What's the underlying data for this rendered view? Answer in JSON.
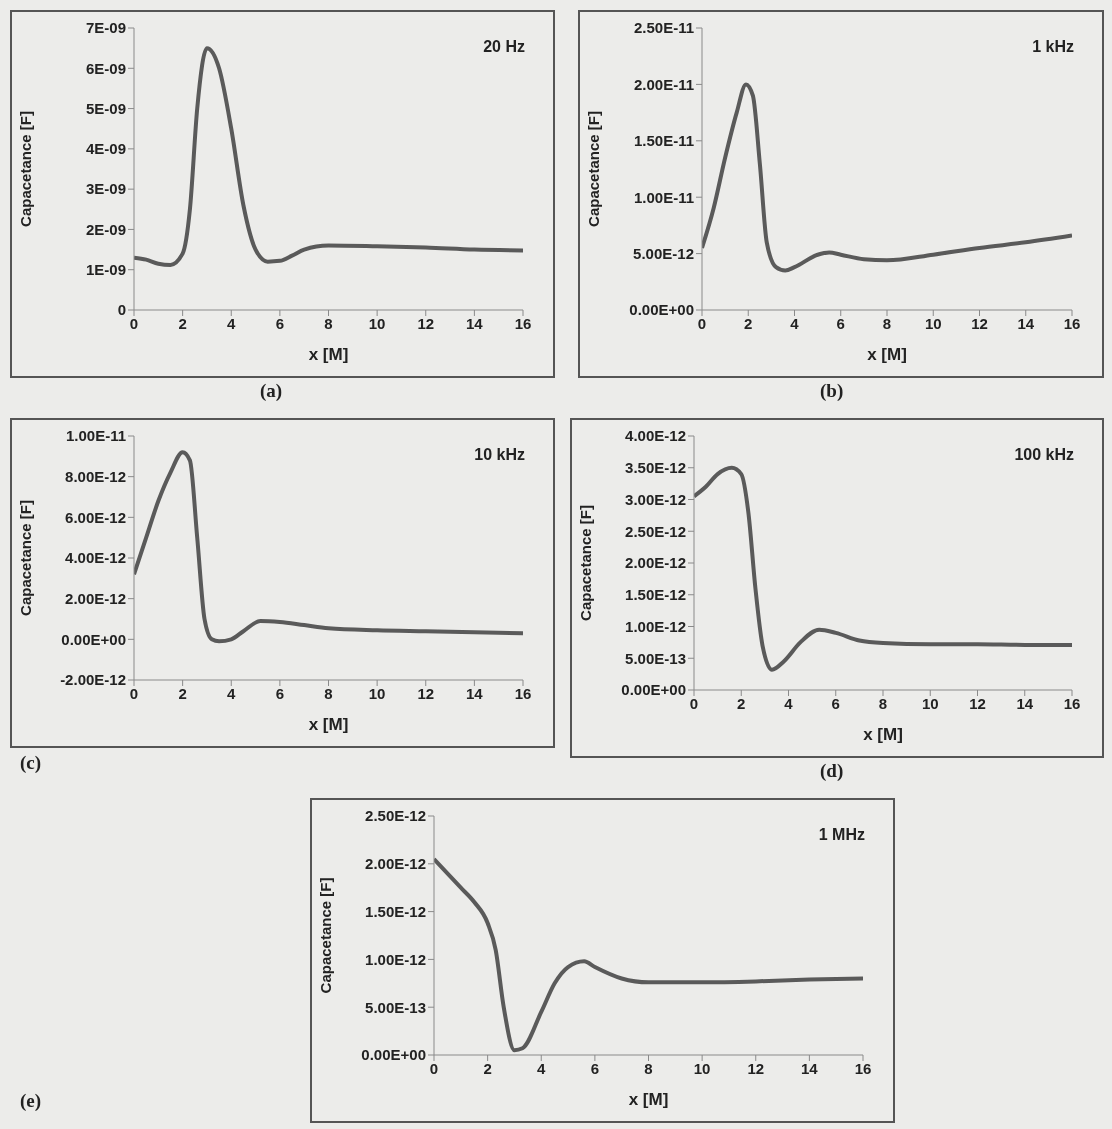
{
  "chart_data": [
    {
      "type": "line",
      "title": "20 Hz",
      "xlabel": "x [M]",
      "ylabel": "Capacetance [F]",
      "annotations": [
        "(a)"
      ],
      "x": [
        0,
        0.5,
        1,
        1.5,
        2,
        2.3,
        2.6,
        3,
        3.5,
        4,
        4.5,
        5,
        5.5,
        6,
        6.5,
        7,
        8,
        10,
        12,
        14,
        16
      ],
      "series": [
        {
          "color": "#5a5a5a",
          "values": [
            1.3e-09,
            1.25e-09,
            1.15e-09,
            1.12e-09,
            1.4e-09,
            2.5e-09,
            5e-09,
            6.5e-09,
            6e-09,
            4.5e-09,
            2.6e-09,
            1.5e-09,
            1.2e-09,
            1.22e-09,
            1.35e-09,
            1.5e-09,
            1.6e-09,
            1.58e-09,
            1.55e-09,
            1.5e-09,
            1.48e-09
          ]
        }
      ],
      "xlim": [
        0,
        16
      ],
      "xticks": [
        0,
        2,
        4,
        6,
        8,
        10,
        12,
        14,
        16
      ],
      "ylim": [
        0,
        7e-09
      ],
      "yticks": [
        0,
        {
          "value": 1e-09,
          "label": "1E-09"
        },
        {
          "value": 2e-09,
          "label": "2E-09"
        },
        {
          "value": 3e-09,
          "label": "3E-09"
        },
        {
          "value": 4e-09,
          "label": "4E-09"
        },
        {
          "value": 5e-09,
          "label": "5E-09"
        },
        {
          "value": 6e-09,
          "label": "6E-09"
        },
        {
          "value": 7e-09,
          "label": "7E-09"
        }
      ],
      "marker": "none",
      "line_style": "solid"
    },
    {
      "type": "line",
      "title": "1 kHz",
      "xlabel": "x [M]",
      "ylabel": "Capacetance [F]",
      "annotations": [
        "(b)"
      ],
      "x": [
        0,
        0.5,
        1,
        1.5,
        1.9,
        2.2,
        2.5,
        2.8,
        3.2,
        3.6,
        4,
        5,
        5.5,
        6,
        7,
        8,
        10,
        12,
        14,
        16
      ],
      "series": [
        {
          "color": "#5a5a5a",
          "values": [
            5.5e-12,
            9e-12,
            1.35e-11,
            1.75e-11,
            2e-11,
            1.9e-11,
            1.3e-11,
            6e-12,
            3.8e-12,
            3.5e-12,
            3.8e-12,
            4.9e-12,
            5.1e-12,
            4.9e-12,
            4.5e-12,
            4.4e-12,
            4.9e-12,
            5.5e-12,
            6e-12,
            6.6e-12
          ]
        }
      ],
      "xlim": [
        0,
        16
      ],
      "xticks": [
        0,
        2,
        4,
        6,
        8,
        10,
        12,
        14,
        16
      ],
      "ylim": [
        0,
        2.5e-11
      ],
      "yticks": [
        {
          "value": 0,
          "label": "0.00E+00"
        },
        {
          "value": 5e-12,
          "label": "5.00E-12"
        },
        {
          "value": 1e-11,
          "label": "1.00E-11"
        },
        {
          "value": 1.5e-11,
          "label": "1.50E-11"
        },
        {
          "value": 2e-11,
          "label": "2.00E-11"
        },
        {
          "value": 2.5e-11,
          "label": "2.50E-11"
        }
      ],
      "marker": "none",
      "line_style": "solid"
    },
    {
      "type": "line",
      "title": "10 kHz",
      "xlabel": "x [M]",
      "ylabel": "Capacetance [F]",
      "annotations": [
        "(c)"
      ],
      "x": [
        0,
        0.5,
        1,
        1.5,
        2,
        2.3,
        2.6,
        2.9,
        3.2,
        3.5,
        4,
        4.5,
        5.2,
        6,
        7,
        8,
        10,
        12,
        14,
        16
      ],
      "series": [
        {
          "color": "#5a5a5a",
          "values": [
            3.2e-12,
            5e-12,
            6.8e-12,
            8.2e-12,
            9.2e-12,
            8.8e-12,
            5e-12,
            1e-12,
            0,
            -1e-13,
            0,
            4e-13,
            9e-13,
            8.5e-13,
            7e-13,
            5.5e-13,
            4.5e-13,
            4e-13,
            3.5e-13,
            3e-13
          ]
        }
      ],
      "xlim": [
        0,
        16
      ],
      "xticks": [
        0,
        2,
        4,
        6,
        8,
        10,
        12,
        14,
        16
      ],
      "ylim": [
        -2e-12,
        1e-11
      ],
      "yticks": [
        {
          "value": -2e-12,
          "label": "-2.00E-12"
        },
        {
          "value": 0,
          "label": "0.00E+00"
        },
        {
          "value": 2e-12,
          "label": "2.00E-12"
        },
        {
          "value": 4e-12,
          "label": "4.00E-12"
        },
        {
          "value": 6e-12,
          "label": "6.00E-12"
        },
        {
          "value": 8e-12,
          "label": "8.00E-12"
        },
        {
          "value": 1e-11,
          "label": "1.00E-11"
        }
      ],
      "marker": "none",
      "line_style": "solid"
    },
    {
      "type": "line",
      "title": "100 kHz",
      "xlabel": "x [M]",
      "ylabel": "Capacetance [F]",
      "annotations": [
        "(d)"
      ],
      "x": [
        0,
        0.5,
        1,
        1.6,
        2,
        2.3,
        2.6,
        2.9,
        3.3,
        3.8,
        4.5,
        5.3,
        6,
        7,
        8,
        10,
        12,
        14,
        16
      ],
      "series": [
        {
          "color": "#5a5a5a",
          "values": [
            3.05e-12,
            3.2e-12,
            3.4e-12,
            3.5e-12,
            3.4e-12,
            2.8e-12,
            1.6e-12,
            7e-13,
            3.2e-13,
            4.5e-13,
            7.5e-13,
            9.5e-13,
            9e-13,
            7.8e-13,
            7.4e-13,
            7.2e-13,
            7.2e-13,
            7.1e-13,
            7.1e-13
          ]
        }
      ],
      "xlim": [
        0,
        16
      ],
      "xticks": [
        0,
        2,
        4,
        6,
        8,
        10,
        12,
        14,
        16
      ],
      "ylim": [
        0,
        4e-12
      ],
      "yticks": [
        {
          "value": 0,
          "label": "0.00E+00"
        },
        {
          "value": 5e-13,
          "label": "5.00E-13"
        },
        {
          "value": 1e-12,
          "label": "1.00E-12"
        },
        {
          "value": 1.5e-12,
          "label": "1.50E-12"
        },
        {
          "value": 2e-12,
          "label": "2.00E-12"
        },
        {
          "value": 2.5e-12,
          "label": "2.50E-12"
        },
        {
          "value": 3e-12,
          "label": "3.00E-12"
        },
        {
          "value": 3.5e-12,
          "label": "3.50E-12"
        },
        {
          "value": 4e-12,
          "label": "4.00E-12"
        }
      ],
      "marker": "none",
      "line_style": "solid"
    },
    {
      "type": "line",
      "title": "1 MHz",
      "xlabel": "x [M]",
      "ylabel": "Capacetance [F]",
      "annotations": [
        "(e)"
      ],
      "x": [
        0,
        0.5,
        1,
        1.5,
        2,
        2.3,
        2.6,
        3,
        3.3,
        4,
        4.5,
        5,
        5.6,
        6,
        7,
        8,
        10,
        12,
        14,
        16
      ],
      "series": [
        {
          "color": "#5a5a5a",
          "values": [
            2.05e-12,
            1.9e-12,
            1.75e-12,
            1.6e-12,
            1.38e-12,
            1.1e-12,
            5e-13,
            5e-14,
            7e-14,
            4.5e-13,
            7.5e-13,
            9.2e-13,
            9.8e-13,
            9.2e-13,
            8e-13,
            7.6e-13,
            7.6e-13,
            7.7e-13,
            7.9e-13,
            8e-13
          ]
        }
      ],
      "xlim": [
        0,
        16
      ],
      "xticks": [
        0,
        2,
        4,
        6,
        8,
        10,
        12,
        14,
        16
      ],
      "ylim": [
        0,
        2.5e-12
      ],
      "yticks": [
        {
          "value": 0,
          "label": "0.00E+00"
        },
        {
          "value": 5e-13,
          "label": "5.00E-13"
        },
        {
          "value": 1e-12,
          "label": "1.00E-12"
        },
        {
          "value": 1.5e-12,
          "label": "1.50E-12"
        },
        {
          "value": 2e-12,
          "label": "2.00E-12"
        },
        {
          "value": 2.5e-12,
          "label": "2.50E-12"
        }
      ],
      "marker": "none",
      "line_style": "solid"
    }
  ]
}
